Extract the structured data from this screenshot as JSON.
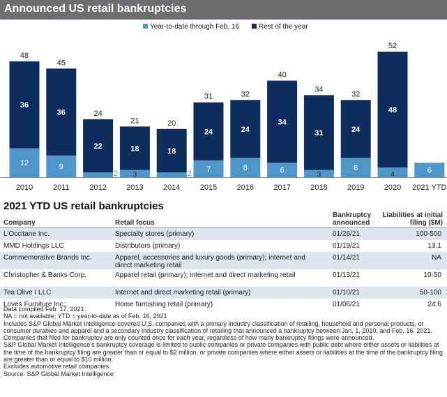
{
  "header": {
    "title": "Announced US retail bankruptcies"
  },
  "chart_data": {
    "type": "bar",
    "stacked": true,
    "categories": [
      "2010",
      "2011",
      "2012",
      "2013",
      "2014",
      "2015",
      "2016",
      "2017",
      "2018",
      "2019",
      "2020",
      "2021 YTD"
    ],
    "series": [
      {
        "name": "Year-to-date through Feb. 16",
        "values": [
          12,
          9,
          2,
          3,
          2,
          7,
          8,
          6,
          3,
          8,
          4,
          6
        ],
        "color": "#4f97c9"
      },
      {
        "name": "Rest of the year",
        "values": [
          36,
          36,
          22,
          18,
          18,
          24,
          24,
          34,
          31,
          24,
          48,
          null
        ],
        "color": "#0f2d5c"
      }
    ],
    "totals": [
      48,
      45,
      24,
      21,
      20,
      31,
      32,
      40,
      34,
      32,
      52,
      null
    ],
    "ylim": [
      0,
      55
    ],
    "legend": "top-center",
    "grid": false
  },
  "table": {
    "title": "2021 YTD US retail bankruptcies",
    "columns": [
      "Company",
      "Retail focus",
      "Bankruptcy announced",
      "Liabilities at initial filing ($M)"
    ],
    "rows": [
      [
        "L'Occitane Inc.",
        "Specialty stores (primary)",
        "01/26/21",
        "100-500"
      ],
      [
        "MMD Holdings LLC",
        "Distributors (primary)",
        "01/19/21",
        "13.1"
      ],
      [
        "Commemorative Brands Inc.",
        "Apparel, accessories and luxury goods (primary); internet and direct marketing retail",
        "01/14/21",
        "NA"
      ],
      [
        "Christopher & Banks Corp.",
        "Apparel retail (primary); internet and direct marketing retail",
        "01/13/21",
        "10-50"
      ],
      [
        "Tea Olive I LLC",
        "Internet and direct marketing retail (primary)",
        "01/10/21",
        "50-100"
      ],
      [
        "Loves Furniture Inc.",
        "Home furnishing retail (primary)",
        "01/06/21",
        "24.6"
      ]
    ]
  },
  "notes": [
    "Data compiled Feb. 17, 2021.",
    "NA = not available; YTD = year-to-date as of Feb. 16, 2021",
    "Includes S&P Global Market Intelligence-covered U.S. companies with a primary industry classification of retailing, household and personal products, or consumer durables and apparel and a secondary industry classification of retailing that announced a bankruptcy between Jan. 1, 2010, and Feb. 16, 2021. Companies that filed for bankruptcy are only counted once for each year, regardless of how many bankruptcy filings were announced.",
    "S&P Global Market Intelligence's bankruptcy coverage is limited to public companies or private companies with public debt where either assets or liabilities at the time of the bankruptcy filing are greater than or equal to $2 million, or private companies where either assets or liabilities at the time of the bankruptcy filing are greater than or equal to $10 million.",
    "Excludes automotive retail companies.",
    "Source: S&P Global Market Intelligence"
  ]
}
